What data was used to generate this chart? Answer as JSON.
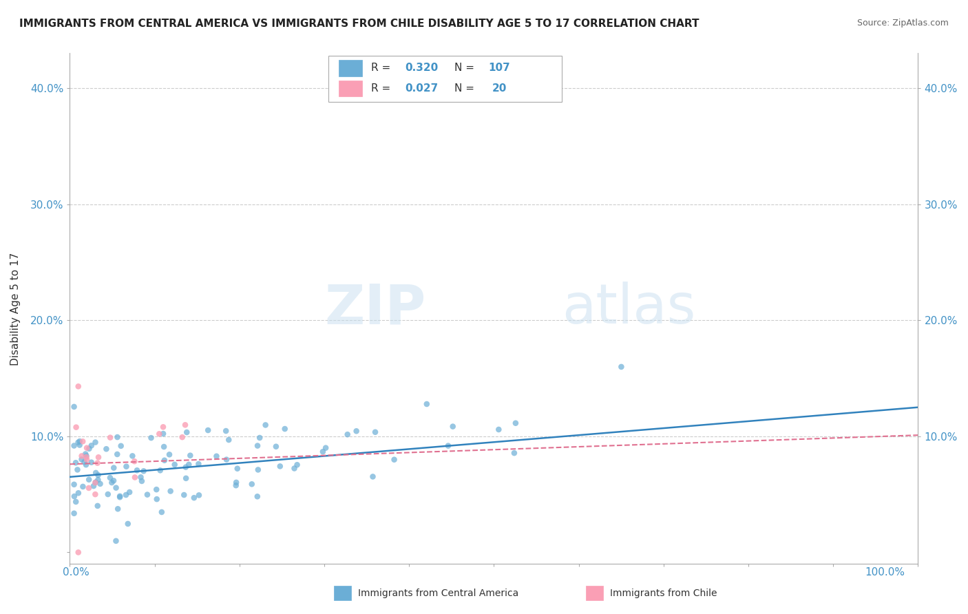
{
  "title": "IMMIGRANTS FROM CENTRAL AMERICA VS IMMIGRANTS FROM CHILE DISABILITY AGE 5 TO 17 CORRELATION CHART",
  "source": "Source: ZipAtlas.com",
  "ylabel": "Disability Age 5 to 17",
  "xlim": [
    0.0,
    1.0
  ],
  "ylim": [
    -0.01,
    0.43
  ],
  "watermark_zip": "ZIP",
  "watermark_atlas": "atlas",
  "legend_R1": "0.320",
  "legend_N1": "107",
  "legend_R2": "0.027",
  "legend_N2": "20",
  "color_blue": "#6baed6",
  "color_pink": "#fa9fb5",
  "color_blue_text": "#4292c6",
  "color_line_blue": "#3182bd",
  "color_line_pink": "#e07090",
  "blue_slope": 0.06,
  "blue_intercept": 0.065,
  "pink_slope": 0.025,
  "pink_intercept": 0.076,
  "grid_color": "#cccccc",
  "background_color": "#ffffff"
}
